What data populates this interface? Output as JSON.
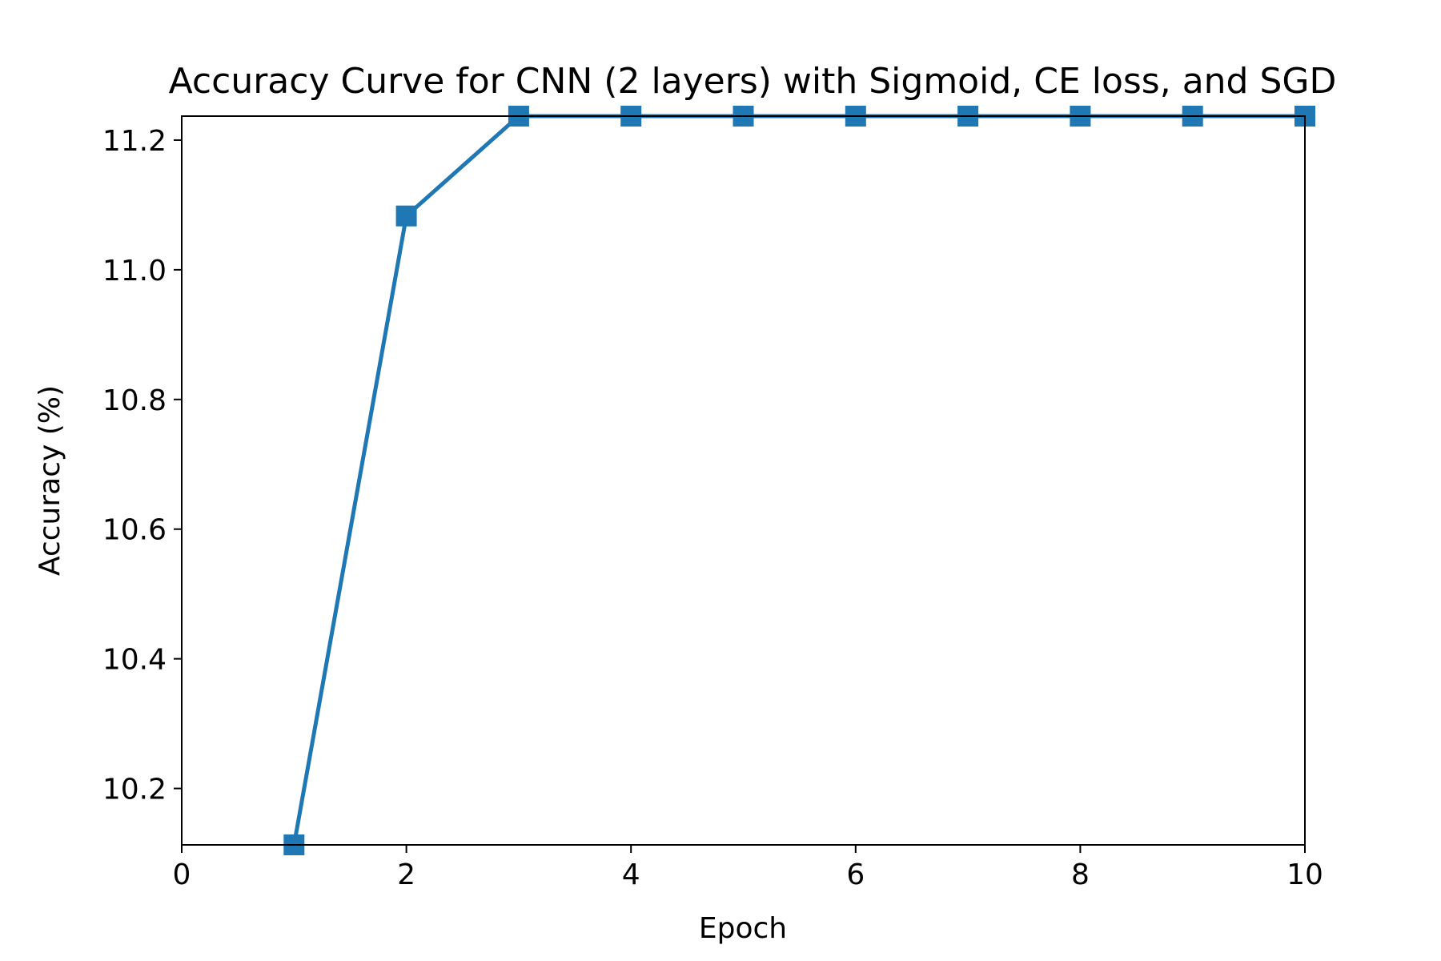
{
  "chart_data": {
    "type": "line",
    "title": "Accuracy Curve for CNN (2 layers) with Sigmoid, CE loss, and SGD",
    "xlabel": "Epoch",
    "ylabel": "Accuracy (%)",
    "xlim": [
      0,
      10
    ],
    "ylim": [
      10.113,
      11.237
    ],
    "xticks": [
      0,
      2,
      4,
      6,
      8,
      10
    ],
    "yticks": [
      10.2,
      10.4,
      10.6,
      10.8,
      11.0,
      11.2
    ],
    "ytick_labels": [
      "10.2",
      "10.4",
      "10.6",
      "10.8",
      "11.0",
      "11.2"
    ],
    "grid": false,
    "legend": "none",
    "marker": "square",
    "series": [
      {
        "color": "#1f77b4",
        "x": [
          1,
          2,
          3,
          4,
          5,
          6,
          7,
          8,
          9,
          10
        ],
        "y": [
          10.113,
          11.083,
          11.237,
          11.237,
          11.237,
          11.237,
          11.237,
          11.237,
          11.237,
          11.237
        ]
      }
    ]
  }
}
